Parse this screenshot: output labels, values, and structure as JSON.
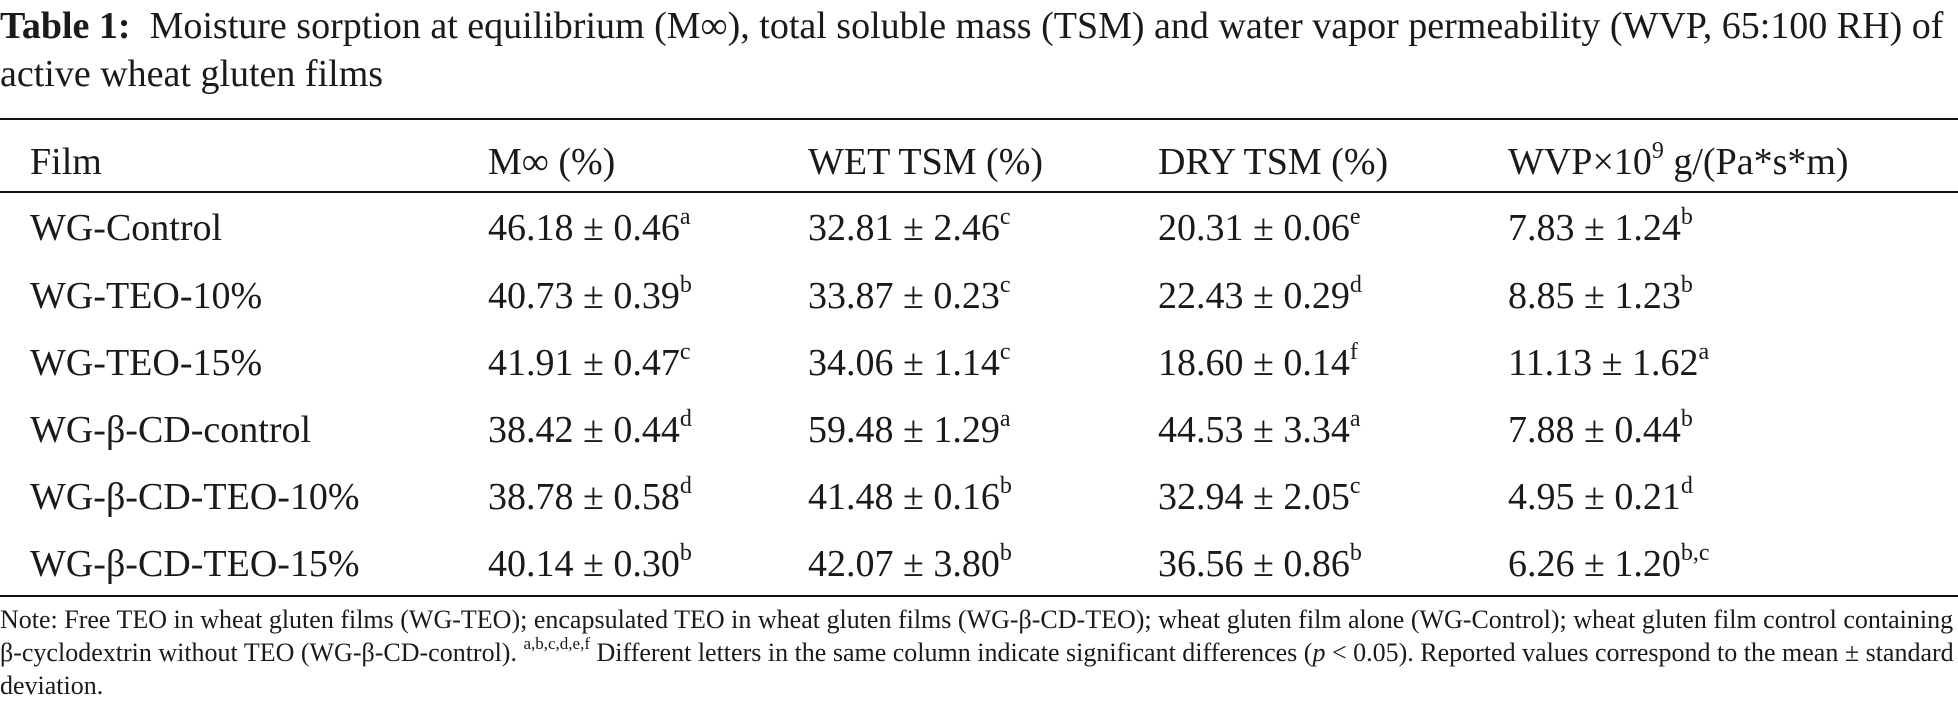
{
  "caption": {
    "label": "Table 1:",
    "text": "Moisture sorption at equilibrium (M∞), total soluble mass (TSM) and water vapor permeability (WVP, 65:100 RH) of active wheat gluten films"
  },
  "table": {
    "headers": {
      "film": "Film",
      "m_inf": "M∞ (%)",
      "wet_tsm": "WET TSM (%)",
      "dry_tsm": "DRY TSM (%)",
      "wvp_prefix": "WVP×10",
      "wvp_exp": "9",
      "wvp_unit": " g/(Pa*s*m)"
    },
    "rows": [
      {
        "film": "WG-Control",
        "m_inf": "46.18 ± 0.46",
        "m_inf_sup": "a",
        "wet": "32.81 ± 2.46",
        "wet_sup": "c",
        "dry": "20.31 ± 0.06",
        "dry_sup": "e",
        "wvp": "7.83 ± 1.24",
        "wvp_sup": "b"
      },
      {
        "film": "WG-TEO-10%",
        "m_inf": "40.73 ± 0.39",
        "m_inf_sup": "b",
        "wet": "33.87 ± 0.23",
        "wet_sup": "c",
        "dry": "22.43 ± 0.29",
        "dry_sup": "d",
        "wvp": "8.85 ± 1.23",
        "wvp_sup": "b"
      },
      {
        "film": "WG-TEO-15%",
        "m_inf": "41.91 ± 0.47",
        "m_inf_sup": "c",
        "wet": "34.06 ± 1.14",
        "wet_sup": "c",
        "dry": "18.60 ± 0.14",
        "dry_sup": "f",
        "wvp": "11.13 ± 1.62",
        "wvp_sup": "a"
      },
      {
        "film": "WG-β-CD-control",
        "m_inf": "38.42 ± 0.44",
        "m_inf_sup": "d",
        "wet": "59.48 ± 1.29",
        "wet_sup": "a",
        "dry": "44.53 ± 3.34",
        "dry_sup": "a",
        "wvp": "7.88 ± 0.44",
        "wvp_sup": "b"
      },
      {
        "film": "WG-β-CD-TEO-10%",
        "m_inf": "38.78 ± 0.58",
        "m_inf_sup": "d",
        "wet": "41.48 ± 0.16",
        "wet_sup": "b",
        "dry": "32.94 ± 2.05",
        "dry_sup": "c",
        "wvp": "4.95 ± 0.21",
        "wvp_sup": "d"
      },
      {
        "film": "WG-β-CD-TEO-15%",
        "m_inf": "40.14 ± 0.30",
        "m_inf_sup": "b",
        "wet": "42.07 ± 3.80",
        "wet_sup": "b",
        "dry": "36.56 ± 0.86",
        "dry_sup": "b",
        "wvp": "6.26 ± 1.20",
        "wvp_sup": "b,c"
      }
    ]
  },
  "note": {
    "part1": "Note: Free TEO in wheat gluten films (WG-TEO); encapsulated TEO in wheat gluten films (WG-β-CD-TEO); wheat gluten film alone (WG-Control); wheat gluten film control containing β-cyclodextrin without TEO (WG-β-CD-control). ",
    "letters": "a,b,c,d,e,f",
    "part2": " Different letters in the same column indicate significant differences (",
    "p": "p",
    "part3": " < 0.05). Reported values correspond to the mean ± standard deviation."
  }
}
